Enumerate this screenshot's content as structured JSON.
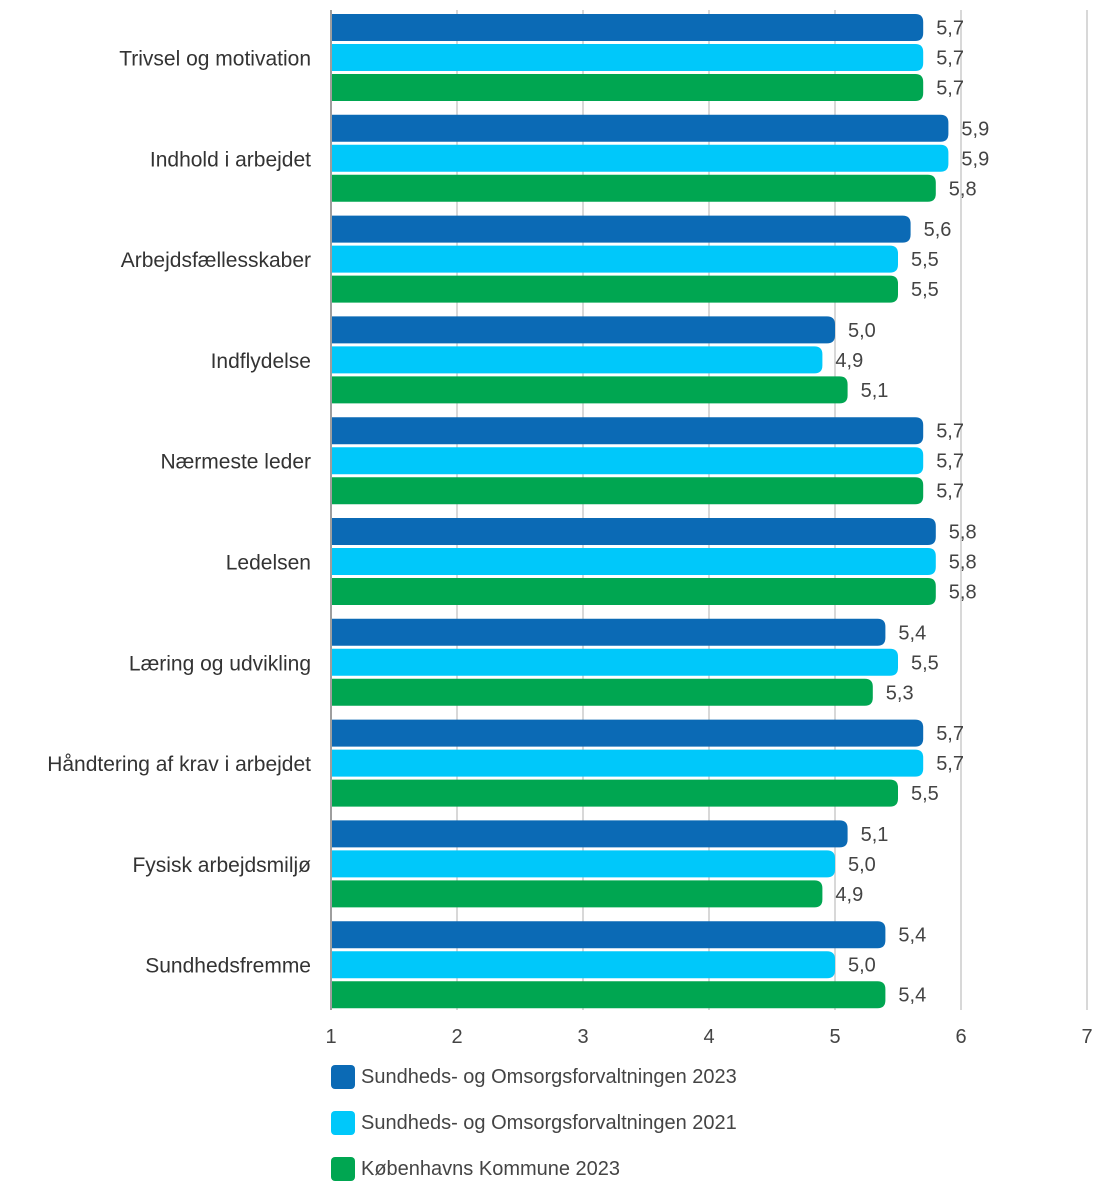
{
  "chart_data": {
    "type": "bar",
    "orientation": "horizontal",
    "categories": [
      "Trivsel og motivation",
      "Indhold i arbejdet",
      "Arbejdsfællesskaber",
      "Indflydelse",
      "Nærmeste leder",
      "Ledelsen",
      "Læring og udvikling",
      "Håndtering af krav i arbejdet",
      "Fysisk arbejdsmiljø",
      "Sundhedsfremme"
    ],
    "series": [
      {
        "name": "Sundheds- og Omsorgsforvaltningen 2023",
        "color": "#0B6AB5",
        "values": [
          5.7,
          5.9,
          5.6,
          5.0,
          5.7,
          5.8,
          5.4,
          5.7,
          5.1,
          5.4
        ],
        "labels": [
          "5,7",
          "5,9",
          "5,6",
          "5,0",
          "5,7",
          "5,8",
          "5,4",
          "5,7",
          "5,1",
          "5,4"
        ]
      },
      {
        "name": "Sundheds- og Omsorgsforvaltningen 2021",
        "color": "#00C8FA",
        "values": [
          5.7,
          5.9,
          5.5,
          4.9,
          5.7,
          5.8,
          5.5,
          5.7,
          5.0,
          5.0
        ],
        "labels": [
          "5,7",
          "5,9",
          "5,5",
          "4,9",
          "5,7",
          "5,8",
          "5,5",
          "5,7",
          "5,0",
          "5,0"
        ]
      },
      {
        "name": "Københavns Kommune 2023",
        "color": "#00A651",
        "values": [
          5.7,
          5.8,
          5.5,
          5.1,
          5.7,
          5.8,
          5.3,
          5.5,
          4.9,
          5.4
        ],
        "labels": [
          "5,7",
          "5,8",
          "5,5",
          "5,1",
          "5,7",
          "5,8",
          "5,3",
          "5,5",
          "4,9",
          "5,4"
        ]
      }
    ],
    "x_ticks": [
      "1",
      "2",
      "3",
      "4",
      "5",
      "6",
      "7"
    ],
    "xlim": [
      1,
      7
    ],
    "grid": "vertical",
    "legend": "bottom"
  }
}
